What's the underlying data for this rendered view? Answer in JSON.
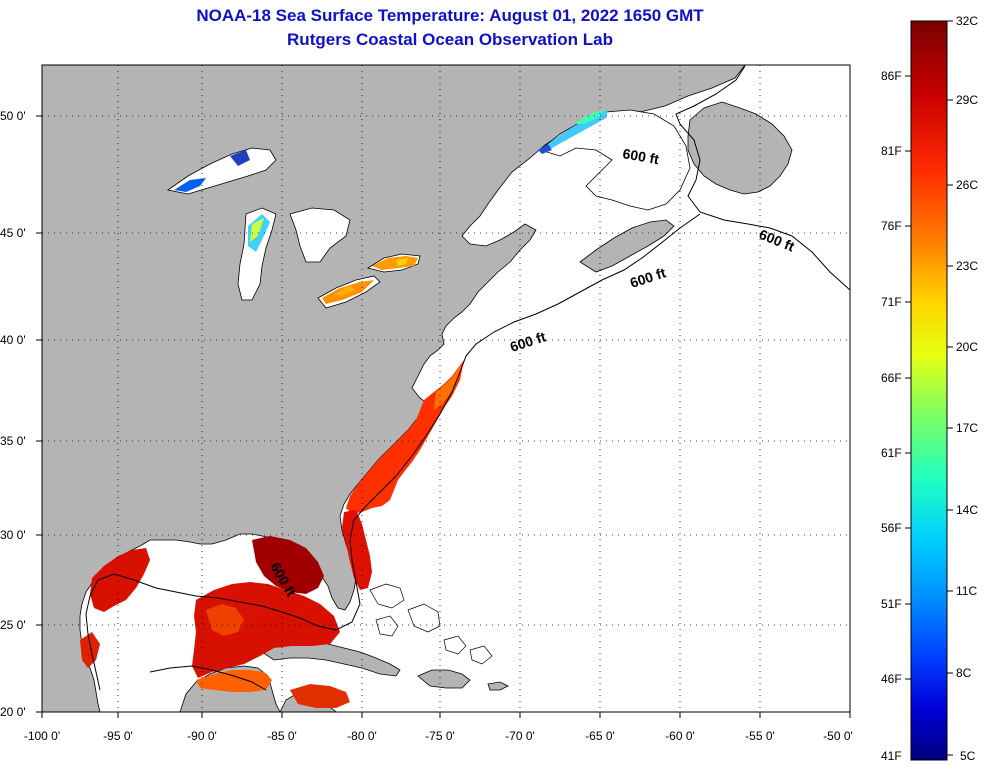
{
  "title": {
    "line1": "NOAA-18 Sea Surface Temperature:  August 01, 2022 1650 GMT",
    "line2": "Rutgers Coastal Ocean Observation Lab"
  },
  "axes": {
    "lon_ticks": [
      "-100 0'",
      "-95 0'",
      "-90 0'",
      "-85 0'",
      "-80 0'",
      "-75 0'",
      "-70 0'",
      "-65 0'",
      "-60 0'",
      "-55 0'",
      "-50 0'"
    ],
    "lat_ticks": [
      "50 0'",
      "45 0'",
      "40 0'",
      "35 0'",
      "30 0'",
      "25 0'",
      "20 0'"
    ]
  },
  "contour_label": "600 ft",
  "colorbar": {
    "fahrenheit_labels": [
      "86F",
      "81F",
      "76F",
      "71F",
      "66F",
      "61F",
      "56F",
      "51F",
      "46F",
      "41F"
    ],
    "celsius_labels": [
      "32C",
      "29C",
      "26C",
      "23C",
      "20C",
      "17C",
      "14C",
      "11C",
      "8C",
      "5C"
    ],
    "colors": [
      "#7a0000",
      "#c80000",
      "#ff3000",
      "#ff8000",
      "#ffd000",
      "#e8ff10",
      "#80ff60",
      "#20ffc0",
      "#00d8ff",
      "#0090ff",
      "#0040ff",
      "#0000d8",
      "#000080"
    ]
  },
  "colors": {
    "land": "#b4b4b4",
    "ocean": "#ffffff",
    "title": "#1010c8"
  }
}
